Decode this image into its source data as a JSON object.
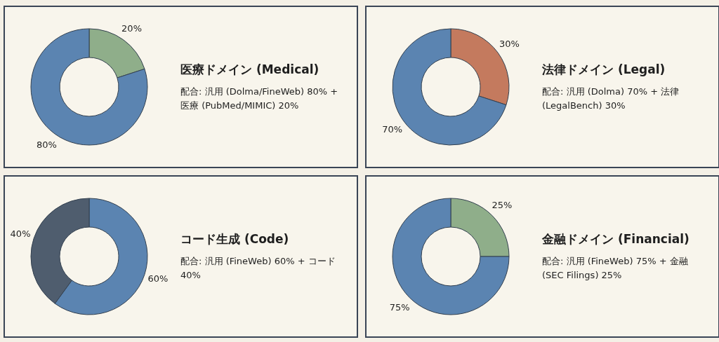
{
  "chart_data": [
    {
      "type": "donut",
      "title": "医療ドメイン (Medical)",
      "annotations": [
        "配合: 汎用 (Dolma/FineWeb) 80% + 医療 (PubMed/MIMIC) 20%"
      ],
      "categories": [
        null,
        null
      ],
      "values": [
        20,
        80
      ],
      "colors": [
        "#8fae8a",
        "#5b84b1"
      ],
      "value_labels": [
        "20%",
        "80%"
      ]
    },
    {
      "type": "donut",
      "title": "法律ドメイン (Legal)",
      "annotations": [
        "配合: 汎用 (Dolma) 70% + 法律 (LegalBench) 30%"
      ],
      "categories": [
        null,
        null
      ],
      "values": [
        30,
        70
      ],
      "colors": [
        "#c47a5e",
        "#5b84b1"
      ],
      "value_labels": [
        "30%",
        "70%"
      ]
    },
    {
      "type": "donut",
      "title": "コード生成 (Code)",
      "annotations": [
        "配合: 汎用 (FineWeb) 60% + コード 40%"
      ],
      "categories": [
        null,
        null
      ],
      "values": [
        60,
        40
      ],
      "colors": [
        "#5b84b1",
        "#4f5d6e"
      ],
      "value_labels": [
        "60%",
        "40%"
      ]
    },
    {
      "type": "donut",
      "title": "金融ドメイン (Financial)",
      "annotations": [
        "配合: 汎用 (FineWeb) 75% + 金融 (SEC Filings) 25%"
      ],
      "categories": [
        null,
        null
      ],
      "values": [
        25,
        75
      ],
      "colors": [
        "#8fae8a",
        "#5b84b1"
      ],
      "value_labels": [
        "25%",
        "75%"
      ]
    }
  ]
}
